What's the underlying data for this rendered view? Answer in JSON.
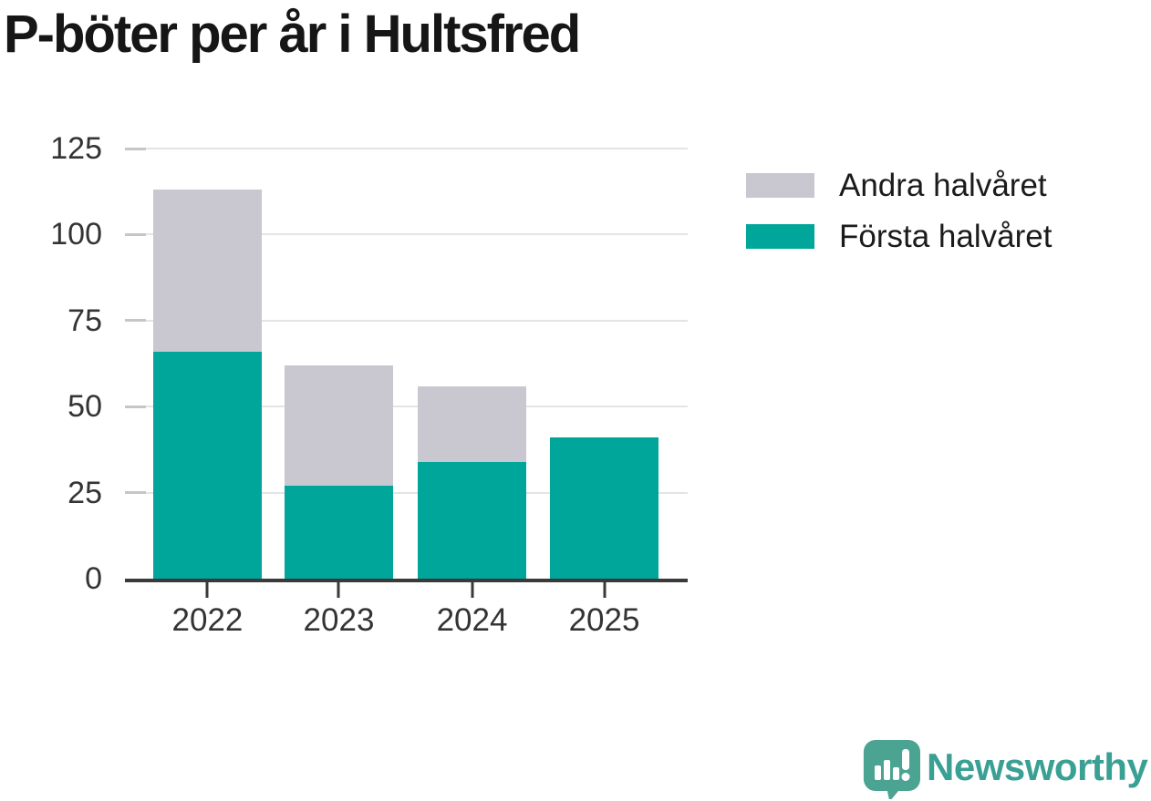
{
  "chart_data": {
    "type": "bar",
    "stacked": true,
    "title": "P-böter per år i Hultsfred",
    "categories": [
      "2022",
      "2023",
      "2024",
      "2025"
    ],
    "series": [
      {
        "name": "Första halvåret",
        "color": "#00a69a",
        "values": [
          66,
          27,
          34,
          41
        ]
      },
      {
        "name": "Andra halvåret",
        "color": "#c9c7cf",
        "values": [
          47,
          35,
          22,
          0
        ]
      }
    ],
    "xlabel": "",
    "ylabel": "",
    "ylim": [
      0,
      125
    ],
    "yticks": [
      0,
      25,
      50,
      75,
      100,
      125
    ],
    "grid": true,
    "legend_position": "right"
  },
  "legend": {
    "items": [
      {
        "label": "Andra halvåret",
        "color": "#c9c7cf"
      },
      {
        "label": "Första halvåret",
        "color": "#00a69a"
      }
    ]
  },
  "branding": {
    "wordmark": "Newsworthy",
    "logo_icon": "newsworthy-speech-bubble-chart-icon",
    "wordmark_color": "#3aa094",
    "logo_color": "#4ba392"
  },
  "colors": {
    "first_half": "#00a69a",
    "second_half": "#c9c7cf",
    "axis": "#3a3a3a",
    "gridline": "#e4e4e4",
    "text": "#343434",
    "title": "#161616"
  }
}
